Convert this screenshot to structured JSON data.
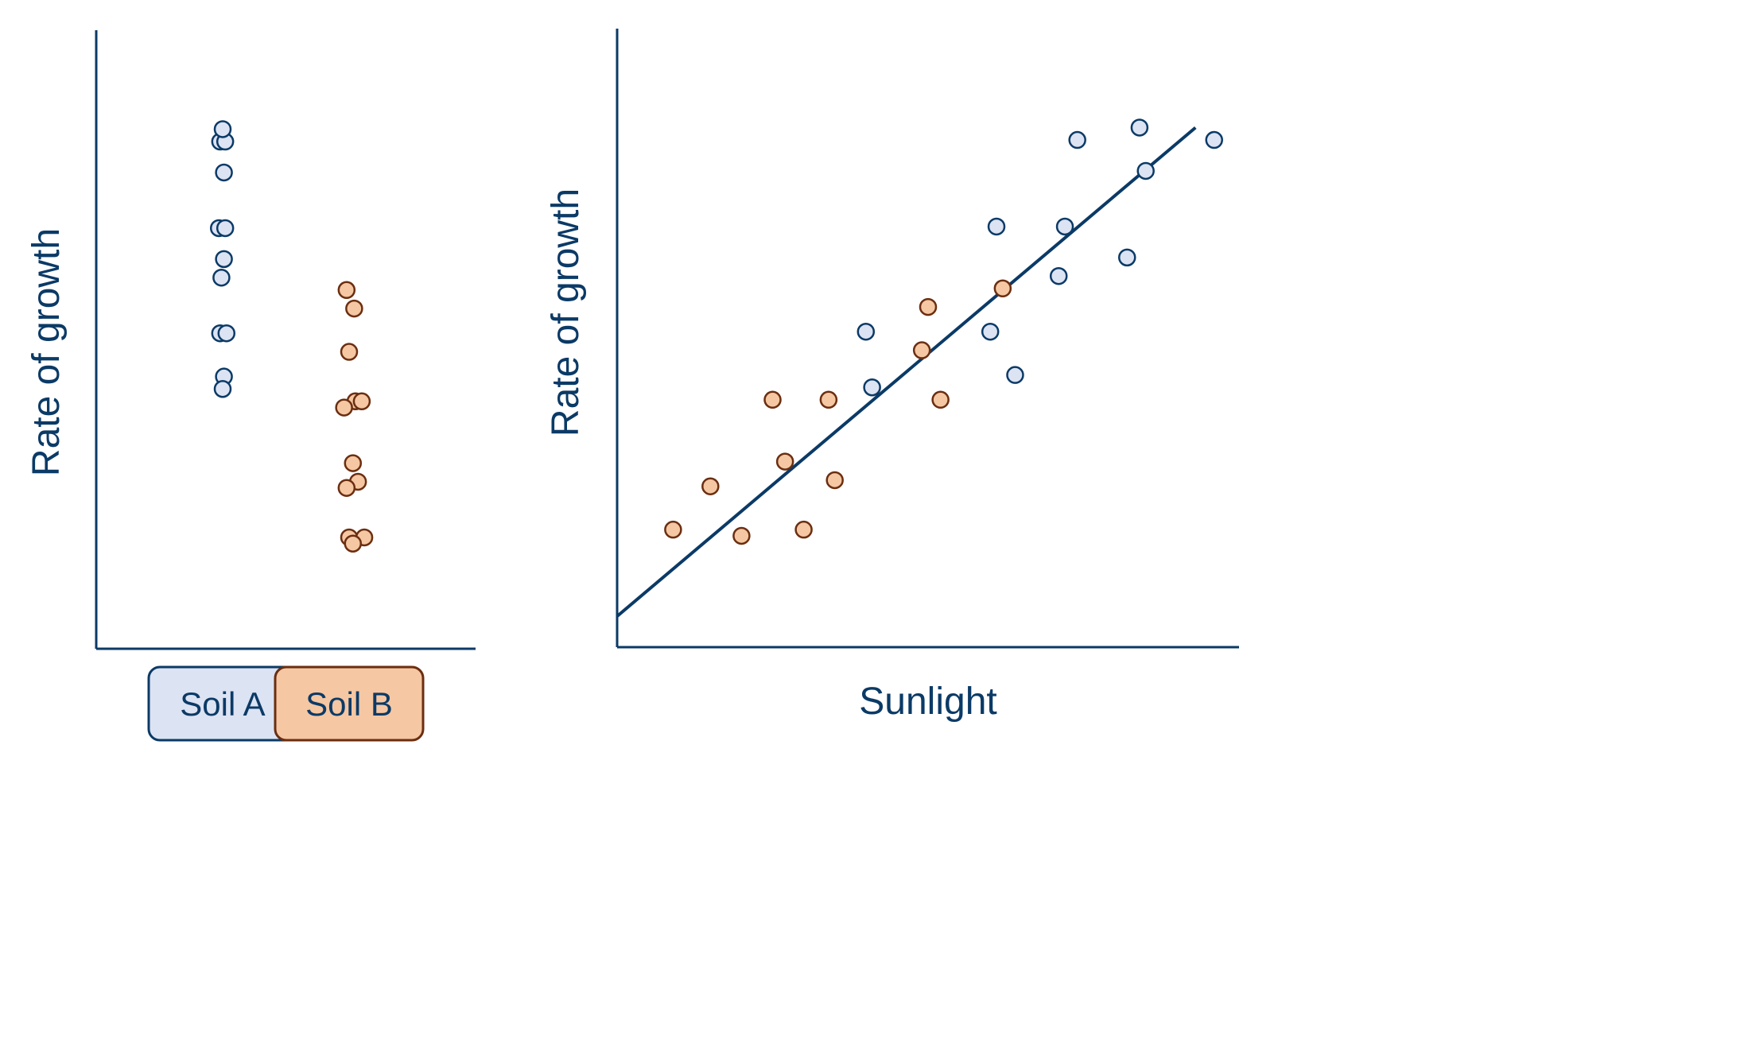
{
  "colors": {
    "axis": "#0b3a66",
    "soil_a_fill": "#dce3f3",
    "soil_a_stroke": "#0b3a66",
    "soil_b_fill": "#f5c7a3",
    "soil_b_stroke": "#6b2e10",
    "label": "#0b3a66"
  },
  "chart_data": [
    {
      "type": "scatter",
      "title": "",
      "ylabel": "Rate of growth",
      "xlabel": "",
      "grid": false,
      "categories": [
        "Soil A",
        "Soil B"
      ],
      "category_legend": [
        {
          "label": "Soil A",
          "series": "Soil A"
        },
        {
          "label": "Soil B",
          "series": "Soil B"
        }
      ],
      "xlim": [
        0,
        3
      ],
      "ylim": [
        0,
        10
      ],
      "series": [
        {
          "name": "Soil A",
          "points": [
            {
              "x": 0.98,
              "y": 8.2
            },
            {
              "x": 1.02,
              "y": 8.2
            },
            {
              "x": 1.0,
              "y": 8.4
            },
            {
              "x": 1.01,
              "y": 7.7
            },
            {
              "x": 0.97,
              "y": 6.8
            },
            {
              "x": 1.02,
              "y": 6.8
            },
            {
              "x": 1.01,
              "y": 6.3
            },
            {
              "x": 0.99,
              "y": 6.0
            },
            {
              "x": 0.98,
              "y": 5.1
            },
            {
              "x": 1.03,
              "y": 5.1
            },
            {
              "x": 1.01,
              "y": 4.4
            },
            {
              "x": 1.0,
              "y": 4.2
            }
          ]
        },
        {
          "name": "Soil B",
          "points": [
            {
              "x": 1.98,
              "y": 5.8
            },
            {
              "x": 2.04,
              "y": 5.5
            },
            {
              "x": 2.0,
              "y": 4.8
            },
            {
              "x": 2.05,
              "y": 4.0
            },
            {
              "x": 2.1,
              "y": 4.0
            },
            {
              "x": 1.96,
              "y": 3.9
            },
            {
              "x": 2.03,
              "y": 3.0
            },
            {
              "x": 2.07,
              "y": 2.7
            },
            {
              "x": 1.98,
              "y": 2.6
            },
            {
              "x": 2.0,
              "y": 1.8
            },
            {
              "x": 2.12,
              "y": 1.8
            },
            {
              "x": 2.03,
              "y": 1.7
            }
          ]
        }
      ]
    },
    {
      "type": "scatter",
      "title": "",
      "ylabel": "Rate of growth",
      "xlabel": "Sunlight",
      "grid": false,
      "xlim": [
        0,
        10
      ],
      "ylim": [
        0,
        10
      ],
      "series": [
        {
          "name": "Soil A",
          "points": [
            {
              "x": 4.0,
              "y": 5.1
            },
            {
              "x": 4.1,
              "y": 4.2
            },
            {
              "x": 6.0,
              "y": 5.1
            },
            {
              "x": 6.4,
              "y": 4.4
            },
            {
              "x": 6.1,
              "y": 6.8
            },
            {
              "x": 7.2,
              "y": 6.8
            },
            {
              "x": 7.1,
              "y": 6.0
            },
            {
              "x": 7.4,
              "y": 8.2
            },
            {
              "x": 8.4,
              "y": 8.4
            },
            {
              "x": 8.5,
              "y": 7.7
            },
            {
              "x": 8.2,
              "y": 6.3
            },
            {
              "x": 9.6,
              "y": 8.2
            }
          ]
        },
        {
          "name": "Soil B",
          "points": [
            {
              "x": 0.9,
              "y": 1.9
            },
            {
              "x": 1.5,
              "y": 2.6
            },
            {
              "x": 2.0,
              "y": 1.8
            },
            {
              "x": 2.5,
              "y": 4.0
            },
            {
              "x": 2.7,
              "y": 3.0
            },
            {
              "x": 3.0,
              "y": 1.9
            },
            {
              "x": 3.4,
              "y": 4.0
            },
            {
              "x": 3.5,
              "y": 2.7
            },
            {
              "x": 4.9,
              "y": 4.8
            },
            {
              "x": 5.0,
              "y": 5.5
            },
            {
              "x": 5.2,
              "y": 4.0
            },
            {
              "x": 6.2,
              "y": 5.8
            }
          ]
        }
      ],
      "trendline": {
        "x": [
          0,
          9.3
        ],
        "y": [
          0.5,
          8.4
        ]
      }
    }
  ]
}
